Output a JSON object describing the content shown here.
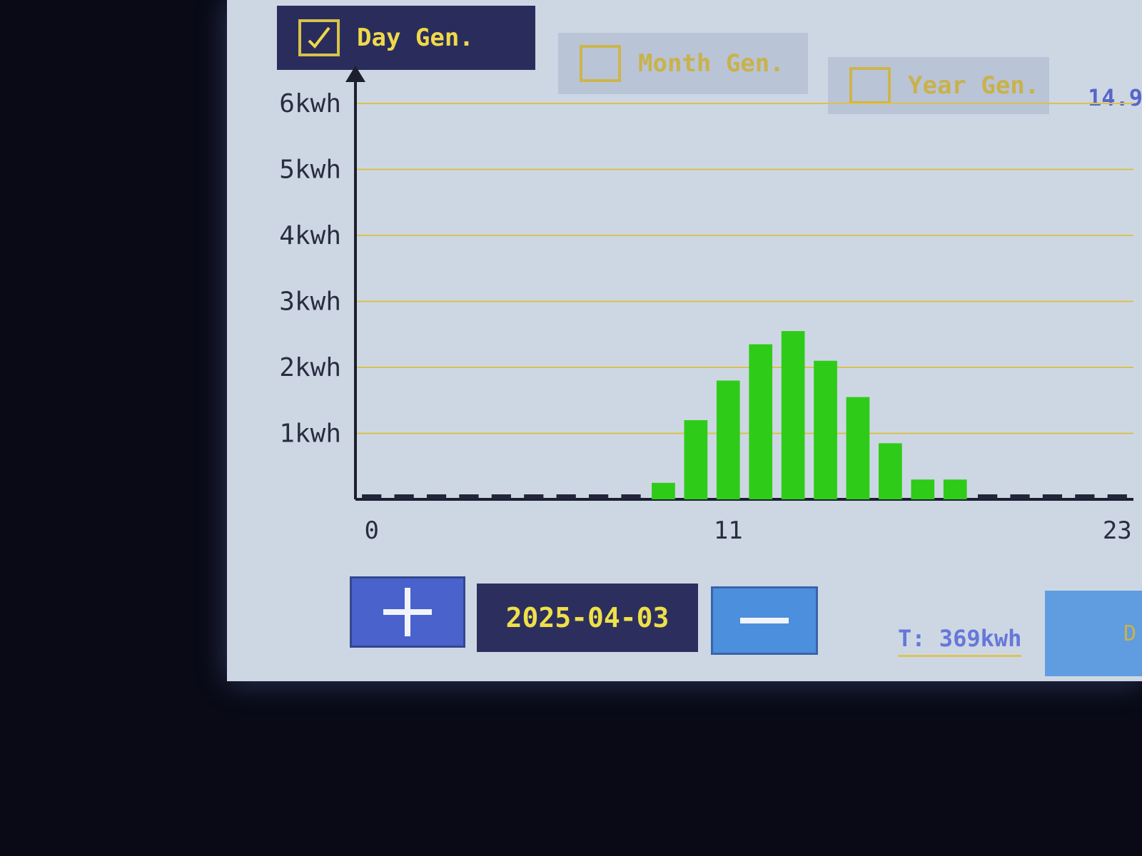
{
  "tabs": {
    "day_label": "Day Gen.",
    "month_label": "Month Gen.",
    "year_label": "Year Gen.",
    "top_right_value": "14.9"
  },
  "controls": {
    "plus_label": "+",
    "minus_label": "—",
    "date": "2025-04-03",
    "total": "T: 369kwh",
    "side_label": "D"
  },
  "colors": {
    "bar": "#2ecb18",
    "grid": "#d9c24a",
    "accent": "#efd94a"
  },
  "chart_data": {
    "type": "bar",
    "y_tick_labels": [
      "1kwh",
      "2kwh",
      "3kwh",
      "4kwh",
      "5kwh",
      "6kwh"
    ],
    "x_tick_labels": [
      "0",
      "11",
      "23"
    ],
    "x_tick_hours": [
      0,
      11,
      23
    ],
    "hours": [
      0,
      1,
      2,
      3,
      4,
      5,
      6,
      7,
      8,
      9,
      10,
      11,
      12,
      13,
      14,
      15,
      16,
      17,
      18,
      19,
      20,
      21,
      22,
      23
    ],
    "values": [
      0,
      0,
      0,
      0,
      0,
      0,
      0,
      0,
      0,
      0.25,
      1.2,
      1.8,
      2.35,
      2.55,
      2.1,
      1.55,
      0.85,
      0.3,
      0.3,
      0,
      0,
      0,
      0,
      0
    ],
    "ylim": [
      0,
      6
    ],
    "grid": true
  }
}
